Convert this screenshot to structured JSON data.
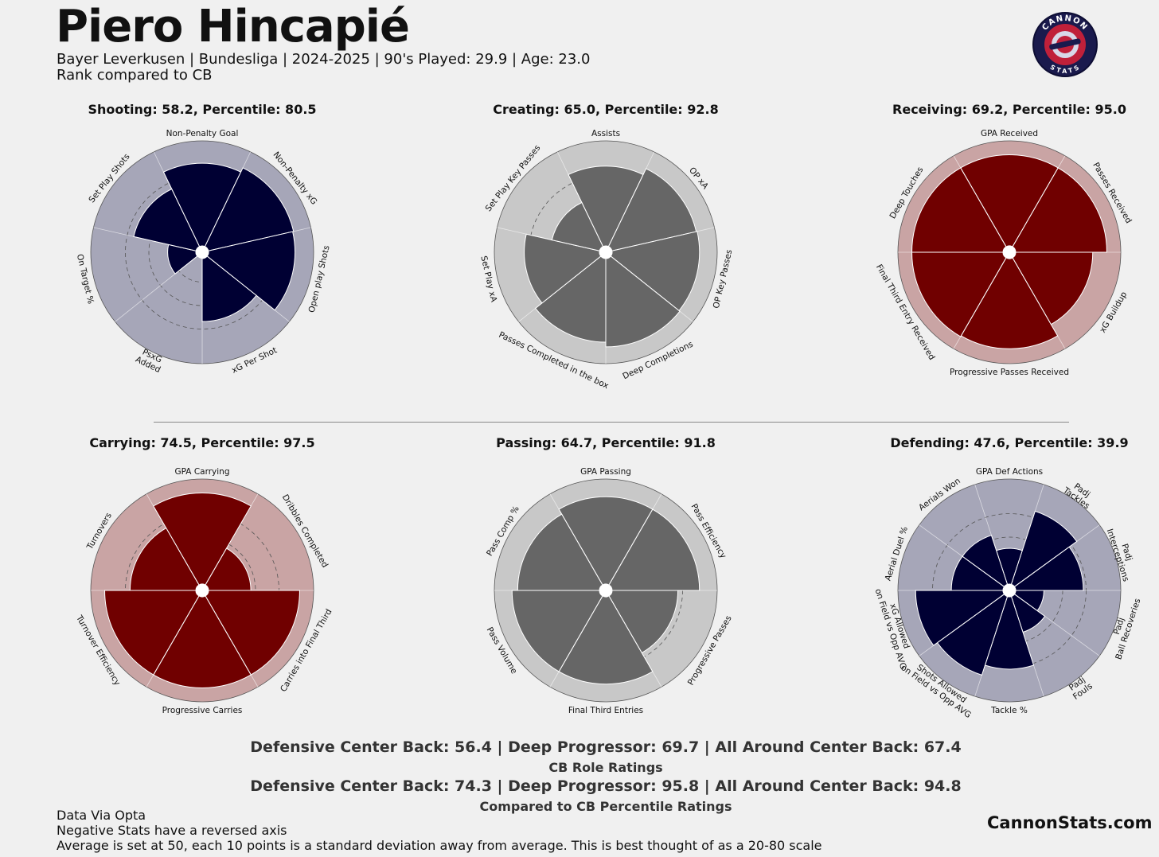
{
  "header": {
    "player_name": "Piero Hincapié",
    "info_line": "Bayer Leverkusen  | Bundesliga | 2024-2025 | 90's Played: 29.9 | Age: 23.0",
    "rank_line": "Rank compared to CB",
    "logo_top_text": "CANNON",
    "logo_bottom_text": "STATS"
  },
  "colors": {
    "navy": "#000033",
    "navy_bg": "#a6a6b8",
    "red": "#700000",
    "red_bg": "#c9a4a4",
    "grey": "#666666",
    "grey_bg": "#c8c8c8"
  },
  "chart_data": [
    {
      "type": "polar-bar",
      "title": "Shooting: 58.2, Percentile: 80.5",
      "scheme": "navy",
      "rlim": [
        0,
        100
      ],
      "categories": [
        "Non-Penalty Goal",
        "Non-Penalty xG",
        "Open play Shots",
        "xG Per Shot",
        "PsxG\nAdded",
        "On Target %",
        "Set Play Shots"
      ],
      "values": [
        88,
        93,
        92,
        67,
        0,
        30,
        68
      ]
    },
    {
      "type": "polar-bar",
      "title": "Creating: 65.0, Percentile: 92.8",
      "scheme": "grey",
      "rlim": [
        0,
        100
      ],
      "categories": [
        "Assists",
        "OP xA",
        "OP Key Passes",
        "Deep Completions",
        "Passes Completed in the box",
        "Set Play xA",
        "Set Play Key Passes"
      ],
      "values": [
        85,
        92,
        93,
        94,
        89,
        80,
        52
      ]
    },
    {
      "type": "polar-bar",
      "title": "Receiving: 69.2, Percentile: 95.0",
      "scheme": "red",
      "rlim": [
        0,
        100
      ],
      "categories": [
        "GPA Received",
        "Passes Received",
        "xG Buildup",
        "Progressive Passes Received",
        "Final Third Entry Received",
        "Deep Touches"
      ],
      "values": [
        97,
        97,
        82,
        96,
        97,
        97
      ]
    },
    {
      "type": "polar-bar",
      "title": "Carrying: 74.5, Percentile: 97.5",
      "scheme": "red",
      "rlim": [
        0,
        100
      ],
      "categories": [
        "GPA Carrying",
        "Dribbles Completed",
        "Carries into Final Third",
        "Progressive Carries",
        "Turnover Efficiency",
        "Turnovers"
      ],
      "values": [
        97,
        45,
        97,
        97,
        97,
        70
      ]
    },
    {
      "type": "polar-bar",
      "title": "Passing: 64.7, Percentile: 91.8",
      "scheme": "grey",
      "rlim": [
        0,
        100
      ],
      "categories": [
        "GPA Passing",
        "Pass Efficiency",
        "Progressive Passes",
        "Final Third Entries",
        "Pass Volume",
        "Pass Comp %"
      ],
      "values": [
        93,
        93,
        70,
        93,
        93,
        87
      ]
    },
    {
      "type": "polar-bar",
      "title": "Defending: 47.6, Percentile: 39.9",
      "scheme": "navy",
      "rlim": [
        0,
        100
      ],
      "categories": [
        "GPA Def Actions",
        "Padj\nTackles",
        "Padj\nInterceptions",
        "Padj\nBall Recoveries",
        "Padj\nFouls",
        "Tackle %",
        "Shots Allowed\non Field vs Opp AVG",
        "xG Allowed\non Field vs Opp AVG",
        "Aerial Duel %",
        "Aerials Won"
      ],
      "values": [
        38,
        82,
        72,
        30,
        40,
        77,
        88,
        93,
        55,
        55
      ]
    }
  ],
  "ratings": {
    "role_line": "Defensive Center Back: 56.4 | Deep Progressor: 69.7 | All Around Center Back: 67.4",
    "role_label": "CB Role Ratings",
    "percentile_line": "Defensive Center Back: 74.3 | Deep Progressor: 95.8 | All Around Center Back: 94.8",
    "percentile_label": "Compared to CB Percentile Ratings"
  },
  "footer": {
    "source": "Data Via Opta",
    "note_negative": "Negative Stats have a reversed axis",
    "note_scale": "Average is set at 50, each 10 points is a standard deviation away from average. This is best thought of as a 20-80 scale",
    "site": "CannonStats.com"
  }
}
